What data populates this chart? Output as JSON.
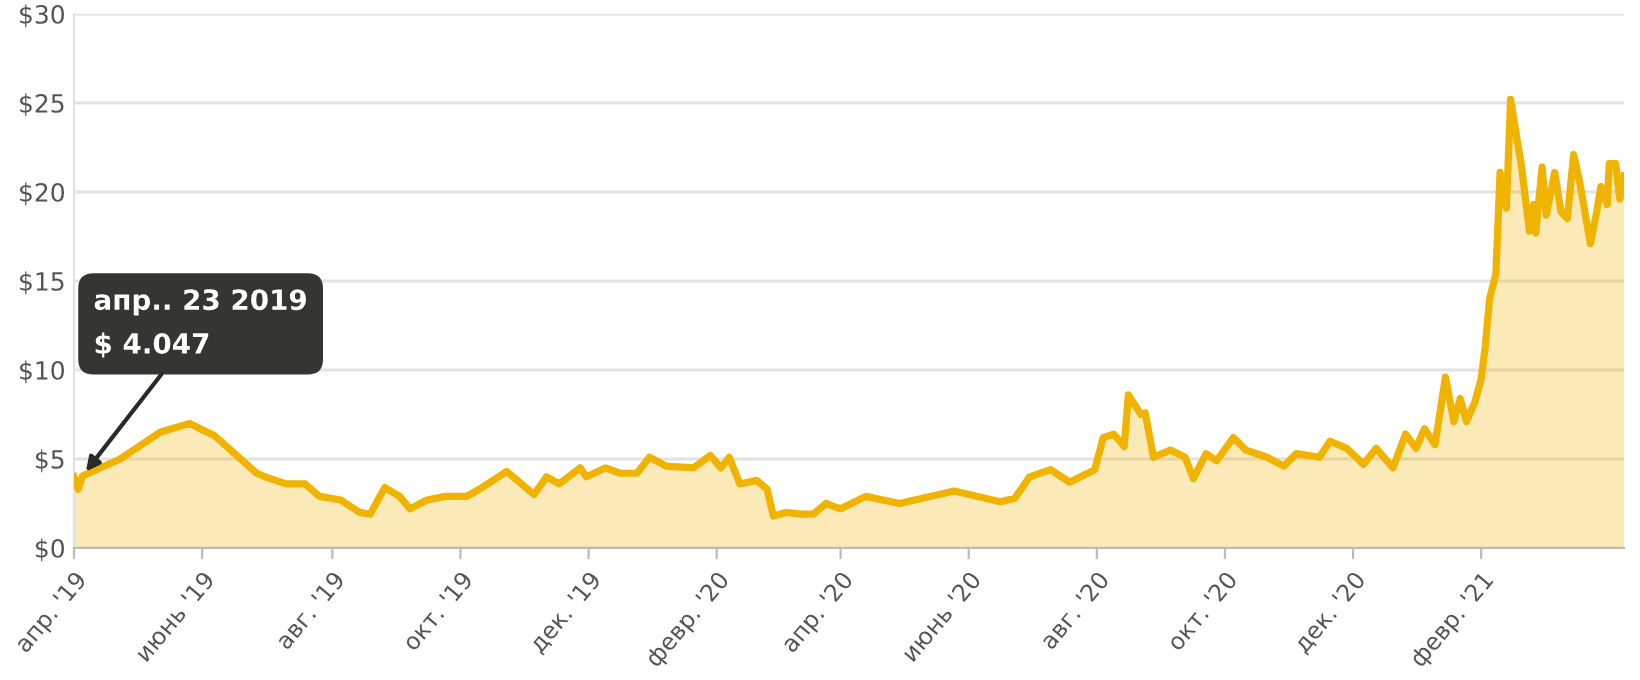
{
  "chart_data": {
    "type": "area",
    "x": [
      "2019-04-19",
      "2019-04-21",
      "2019-04-23",
      "2019-05-11",
      "2019-05-30",
      "2019-06-13",
      "2019-06-18",
      "2019-06-25",
      "2019-07-15",
      "2019-07-19",
      "2019-07-29",
      "2019-08-07",
      "2019-08-14",
      "2019-08-24",
      "2019-09-02",
      "2019-09-07",
      "2019-09-14",
      "2019-09-21",
      "2019-09-26",
      "2019-10-04",
      "2019-10-13",
      "2019-10-23",
      "2019-10-29",
      "2019-11-11",
      "2019-11-15",
      "2019-11-24",
      "2019-11-30",
      "2019-12-06",
      "2019-12-16",
      "2019-12-19",
      "2019-12-28",
      "2020-01-04",
      "2020-01-12",
      "2020-01-18",
      "2020-01-26",
      "2020-02-08",
      "2020-02-16",
      "2020-02-21",
      "2020-02-25",
      "2020-03-01",
      "2020-03-09",
      "2020-03-14",
      "2020-03-17",
      "2020-03-23",
      "2020-03-30",
      "2020-04-05",
      "2020-04-11",
      "2020-04-18",
      "2020-04-30",
      "2020-05-16",
      "2020-06-11",
      "2020-07-03",
      "2020-07-10",
      "2020-07-17",
      "2020-07-27",
      "2020-08-05",
      "2020-08-17",
      "2020-08-21",
      "2020-08-26",
      "2020-08-31",
      "2020-09-02",
      "2020-09-08",
      "2020-09-10",
      "2020-09-14",
      "2020-09-22",
      "2020-09-29",
      "2020-10-03",
      "2020-10-09",
      "2020-10-14",
      "2020-10-22",
      "2020-10-28",
      "2020-11-07",
      "2020-11-15",
      "2020-11-21",
      "2020-12-02",
      "2020-12-07",
      "2020-12-15",
      "2020-12-23",
      "2020-12-29",
      "2021-01-06",
      "2021-01-12",
      "2021-01-17",
      "2021-01-21",
      "2021-01-26",
      "2021-01-31",
      "2021-02-04",
      "2021-02-07",
      "2021-02-10",
      "2021-02-14",
      "2021-02-17",
      "2021-02-19",
      "2021-02-21",
      "2021-02-24",
      "2021-02-26",
      "2021-03-01",
      "2021-03-03",
      "2021-03-06",
      "2021-03-08",
      "2021-03-12",
      "2021-03-14",
      "2021-03-15",
      "2021-03-18",
      "2021-03-20",
      "2021-03-24",
      "2021-03-27",
      "2021-03-30",
      "2021-04-02",
      "2021-04-05",
      "2021-04-10",
      "2021-04-13",
      "2021-04-15",
      "2021-04-18",
      "2021-04-19",
      "2021-04-22",
      "2021-04-24",
      "2021-04-26"
    ],
    "series": [
      {
        "color": "#f0b400",
        "values": [
          4.0,
          3.3,
          4.047,
          5.0,
          6.5,
          7.0,
          6.7,
          6.3,
          4.2,
          4.0,
          3.6,
          3.6,
          2.9,
          2.7,
          2.0,
          1.9,
          3.4,
          2.9,
          2.2,
          2.7,
          2.9,
          2.9,
          3.3,
          4.3,
          3.9,
          3.0,
          4.0,
          3.6,
          4.5,
          4.0,
          4.5,
          4.2,
          4.2,
          5.1,
          4.6,
          4.5,
          5.2,
          4.5,
          5.1,
          3.6,
          3.8,
          3.3,
          1.8,
          2.0,
          1.9,
          1.9,
          2.5,
          2.2,
          2.9,
          2.5,
          3.2,
          2.6,
          2.8,
          4.0,
          4.4,
          3.7,
          4.4,
          6.2,
          6.4,
          5.7,
          8.6,
          7.5,
          7.6,
          5.1,
          5.5,
          5.1,
          3.9,
          5.3,
          4.9,
          6.2,
          5.5,
          5.1,
          4.6,
          5.3,
          5.1,
          6.0,
          5.6,
          4.7,
          5.6,
          4.5,
          6.4,
          5.6,
          6.7,
          5.8,
          9.6,
          7.1,
          8.4,
          7.1,
          8.2,
          9.5,
          11.4,
          14.0,
          15.4,
          21.1,
          19.1,
          25.2,
          23.0,
          21.6,
          17.8,
          19.3,
          17.7,
          21.4,
          18.7,
          21.1,
          18.9,
          18.5,
          22.1,
          20.5,
          17.1,
          18.9,
          20.3,
          19.3,
          21.6,
          21.6,
          19.6,
          20.9
        ]
      }
    ],
    "xlim": [
      "2019-04-19",
      "2021-04-26"
    ],
    "xticks": [
      {
        "value": "2019-04-19",
        "label": "апр. '19"
      },
      {
        "value": "2019-06-19",
        "label": "июнь '19"
      },
      {
        "value": "2019-08-20",
        "label": "авг. '19"
      },
      {
        "value": "2019-10-20",
        "label": "окт. '19"
      },
      {
        "value": "2019-12-20",
        "label": "дек. '19"
      },
      {
        "value": "2020-02-19",
        "label": "февр. '20"
      },
      {
        "value": "2020-04-18",
        "label": "апр. '20"
      },
      {
        "value": "2020-06-18",
        "label": "июнь '20"
      },
      {
        "value": "2020-08-18",
        "label": "авг. '20"
      },
      {
        "value": "2020-10-18",
        "label": "окт. '20"
      },
      {
        "value": "2020-12-18",
        "label": "дек. '20"
      },
      {
        "value": "2021-02-17",
        "label": "февр. '21"
      }
    ],
    "ylim": [
      0,
      30
    ],
    "yticks": [
      {
        "value": 0,
        "label": "$0"
      },
      {
        "value": 5,
        "label": "$5"
      },
      {
        "value": 10,
        "label": "$10"
      },
      {
        "value": 15,
        "label": "$15"
      },
      {
        "value": 20,
        "label": "$20"
      },
      {
        "value": 25,
        "label": "$25"
      },
      {
        "value": 30,
        "label": "$30"
      }
    ],
    "grid": "y",
    "marker": "none",
    "line_style": "solid",
    "annotations": [
      {
        "text": "апр.. 23 2019\n$ 4.047",
        "x": "2019-04-23",
        "y": 4.047
      }
    ]
  }
}
